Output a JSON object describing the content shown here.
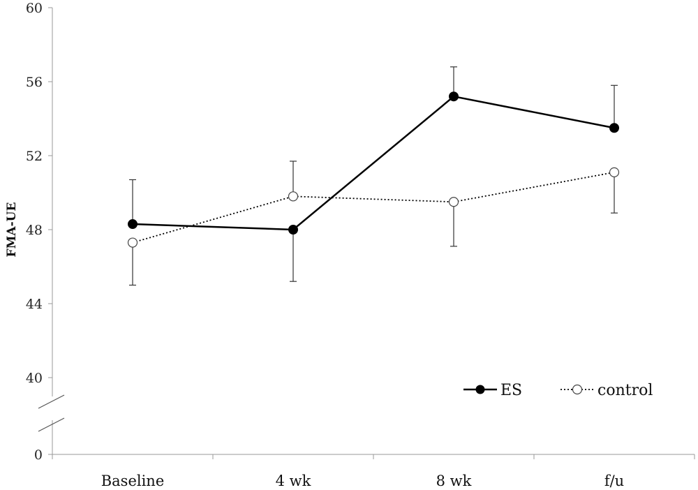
{
  "chart_data": {
    "type": "line",
    "title": "",
    "xlabel": "",
    "ylabel": "FMA-UE",
    "categories": [
      "Baseline",
      "4 wk",
      "8 wk",
      "f/u"
    ],
    "y_ticks": [
      0,
      40,
      44,
      48,
      52,
      56,
      60
    ],
    "y_tick_labels": [
      "0",
      "40",
      "44",
      "48",
      "52",
      "56",
      "60"
    ],
    "ylim": [
      40,
      60
    ],
    "axis_break": true,
    "grid": false,
    "legend_position": "bottom-right",
    "series": [
      {
        "name": "ES",
        "style": "solid",
        "marker": "filled-circle",
        "values": [
          48.3,
          48.0,
          55.2,
          53.5
        ],
        "error_plus": [
          2.4,
          0,
          1.6,
          2.3
        ],
        "error_minus": [
          0,
          2.8,
          0,
          0
        ],
        "color": "#000000"
      },
      {
        "name": "control",
        "style": "dotted",
        "marker": "open-circle",
        "values": [
          47.3,
          49.8,
          49.5,
          51.1
        ],
        "error_plus": [
          0,
          1.9,
          0,
          0
        ],
        "error_minus": [
          2.3,
          0,
          2.4,
          2.2
        ],
        "color": "#000000"
      }
    ]
  }
}
